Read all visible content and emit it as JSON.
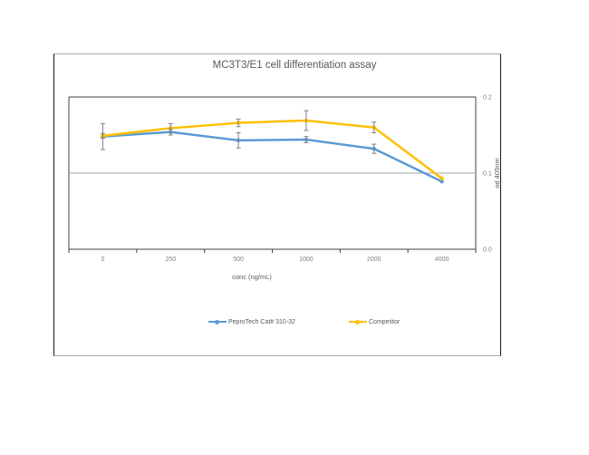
{
  "chart_data": {
    "type": "line",
    "title": "MC3T3/E1 cell differentiation assay",
    "xlabel": "conc (ng/mL)",
    "ylabel": "od 405nm",
    "categories": [
      "0",
      "250",
      "500",
      "1000",
      "2000",
      "4000"
    ],
    "y_ticks": [
      "0.2",
      "0.1",
      "0.0"
    ],
    "ylim": [
      0,
      0.2
    ],
    "y_axis_position": "right",
    "grid": "single horizontal gridline at 0.1",
    "legend_position": "bottom",
    "series": [
      {
        "name": "PeproTech Cat# 310-32",
        "color": "#5b9bd5",
        "values": [
          0.148,
          0.154,
          0.143,
          0.144,
          0.132,
          0.089
        ],
        "error": [
          0.017,
          0.004,
          0.01,
          0.004,
          0.006,
          0.002
        ]
      },
      {
        "name": "Competitor",
        "color": "#ffc000",
        "values": [
          0.149,
          0.159,
          0.166,
          0.169,
          0.16,
          0.093
        ],
        "error": [
          0.003,
          0.006,
          0.005,
          0.013,
          0.007,
          0.002
        ]
      }
    ]
  },
  "legend": {
    "items": [
      {
        "label": "PeproTech Cat# 310-32",
        "color": "#5b9bd5"
      },
      {
        "label": "Competitor",
        "color": "#ffc000"
      }
    ]
  }
}
